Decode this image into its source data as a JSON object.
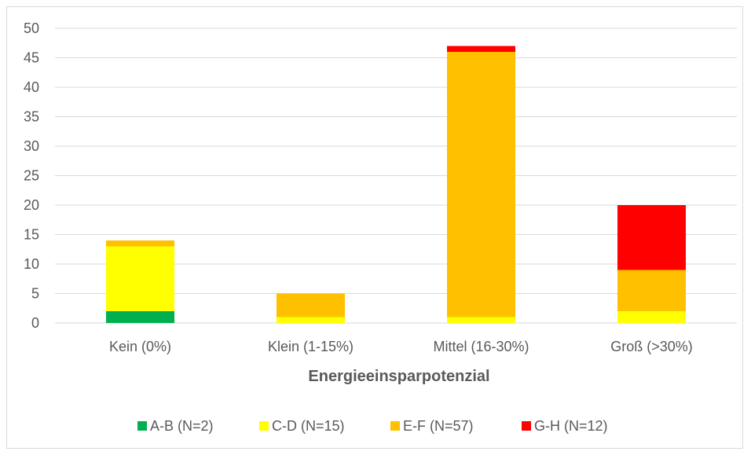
{
  "chart_data": {
    "type": "bar",
    "stacked": true,
    "categories": [
      "Kein (0%)",
      "Klein (1-15%)",
      "Mittel (16-30%)",
      "Groß (>30%)"
    ],
    "series": [
      {
        "name": "A-B (N=2)",
        "color": "#00b050",
        "values": [
          2,
          0,
          0,
          0
        ]
      },
      {
        "name": "C-D (N=15)",
        "color": "#ffff00",
        "values": [
          11,
          1,
          1,
          2
        ]
      },
      {
        "name": "E-F (N=57)",
        "color": "#ffc000",
        "values": [
          1,
          4,
          45,
          7
        ]
      },
      {
        "name": "G-H (N=12)",
        "color": "#ff0000",
        "values": [
          0,
          0,
          1,
          11
        ]
      }
    ],
    "xlabel": "Energieeinsparpotenzial",
    "ylabel": "",
    "ylim": [
      0,
      50
    ],
    "yticks": [
      0,
      5,
      10,
      15,
      20,
      25,
      30,
      35,
      40,
      45,
      50
    ],
    "grid": true,
    "legend": "bottom"
  }
}
